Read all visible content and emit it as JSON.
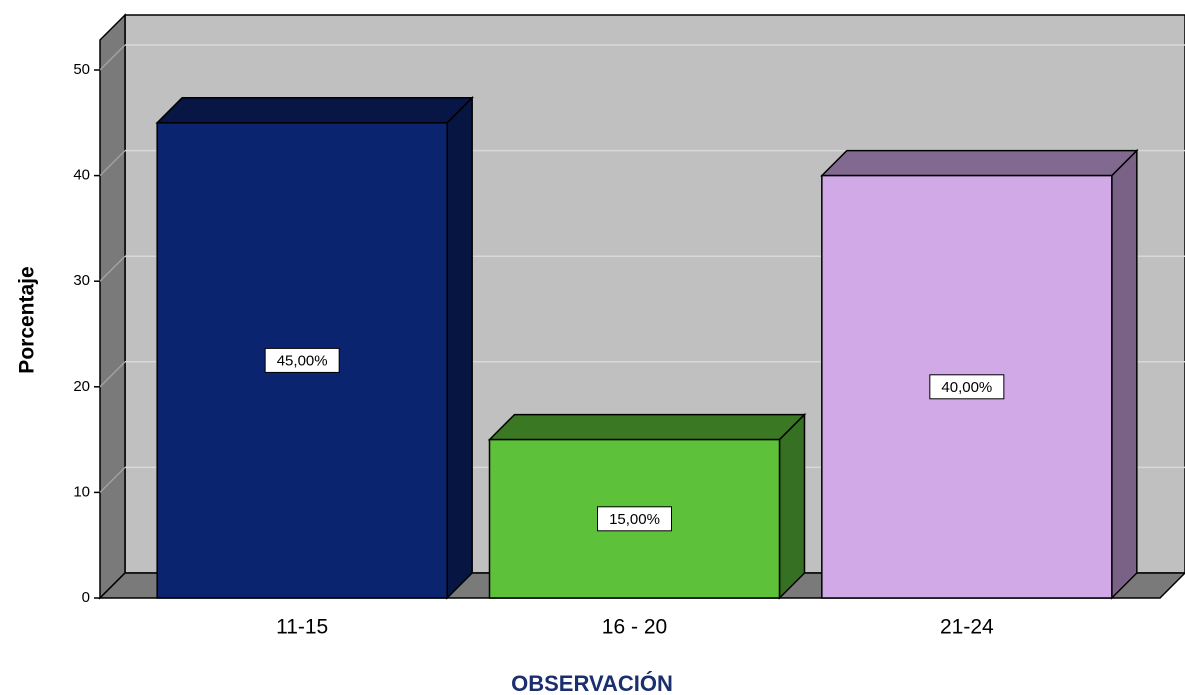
{
  "chart_data": {
    "type": "bar3d",
    "categories": [
      "11-15",
      "16 - 20",
      "21-24"
    ],
    "values": [
      45,
      15,
      40
    ],
    "value_labels": [
      "45,00%",
      "15,00%",
      "40,00%"
    ],
    "colors": [
      "#0b2470",
      "#5dc13a",
      "#d0a9e6"
    ],
    "ylim": [
      0,
      50
    ],
    "yticks": [
      0,
      10,
      20,
      30,
      40,
      50
    ],
    "grid": true,
    "ylabel": "Porcentaje",
    "xlabel": "OBSERVACIÓN"
  }
}
